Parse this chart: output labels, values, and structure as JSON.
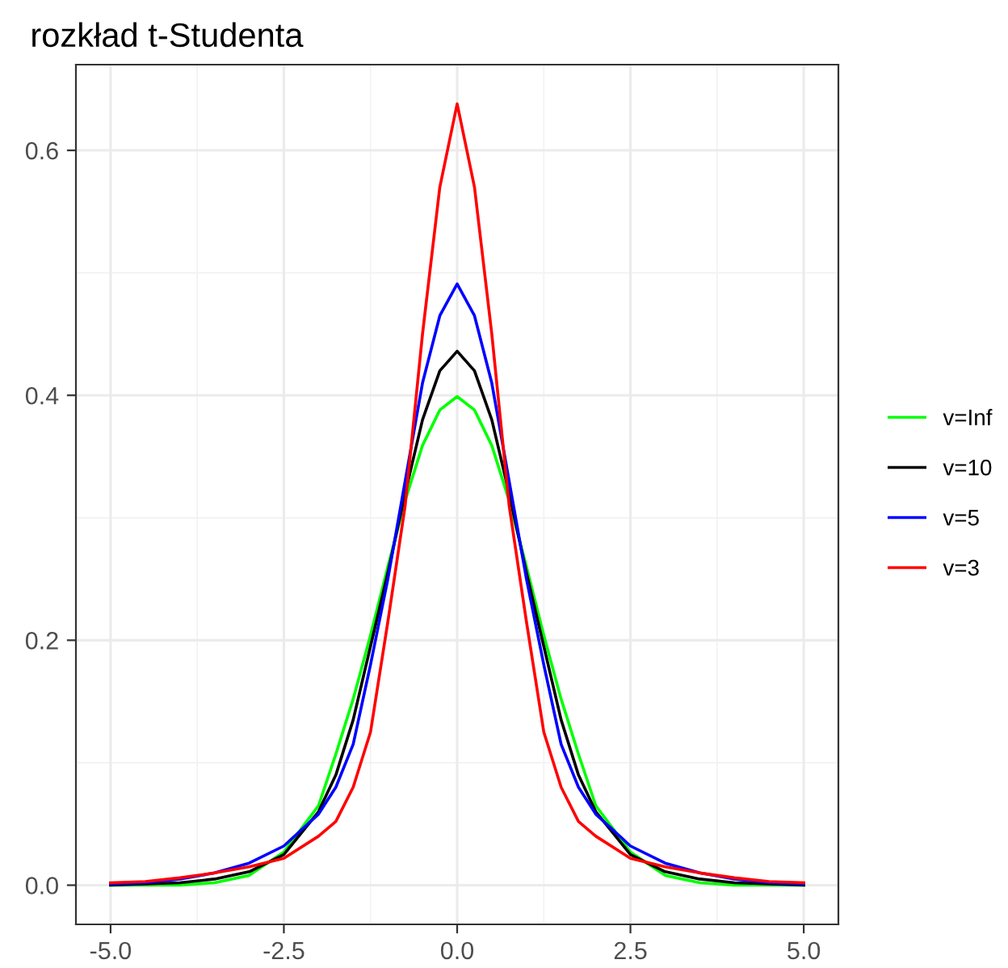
{
  "chart_data": {
    "type": "line",
    "title": "rozkład t-Studenta",
    "x": [
      -5,
      -4.5,
      -4,
      -3.5,
      -3,
      -2.5,
      -2,
      -1.75,
      -1.5,
      -1.25,
      -1,
      -0.75,
      -0.5,
      -0.25,
      0,
      0.25,
      0.5,
      0.75,
      1,
      1.25,
      1.5,
      1.75,
      2,
      2.5,
      3,
      3.5,
      4,
      4.5,
      5
    ],
    "series": [
      {
        "name": "v=Inf",
        "color": "#00ff00",
        "values": [
          0,
          0,
          0,
          0.002,
          0.008,
          0.027,
          0.065,
          0.107,
          0.152,
          0.204,
          0.26,
          0.314,
          0.359,
          0.388,
          0.399,
          0.388,
          0.359,
          0.314,
          0.26,
          0.204,
          0.152,
          0.107,
          0.065,
          0.027,
          0.008,
          0.002,
          0,
          0,
          0
        ]
      },
      {
        "name": "v=10",
        "color": "#000000",
        "values": [
          0,
          0.001,
          0.002,
          0.005,
          0.011,
          0.025,
          0.06,
          0.09,
          0.135,
          0.195,
          0.255,
          0.32,
          0.38,
          0.42,
          0.436,
          0.42,
          0.38,
          0.32,
          0.255,
          0.195,
          0.135,
          0.09,
          0.06,
          0.025,
          0.011,
          0.005,
          0.002,
          0.001,
          0
        ]
      },
      {
        "name": "v=5",
        "color": "#0000ff",
        "values": [
          0.001,
          0.002,
          0.005,
          0.01,
          0.018,
          0.032,
          0.058,
          0.08,
          0.115,
          0.18,
          0.25,
          0.33,
          0.41,
          0.465,
          0.491,
          0.465,
          0.41,
          0.33,
          0.25,
          0.18,
          0.115,
          0.08,
          0.058,
          0.032,
          0.018,
          0.01,
          0.005,
          0.002,
          0.001
        ]
      },
      {
        "name": "v=3",
        "color": "#ff0000",
        "values": [
          0.002,
          0.003,
          0.006,
          0.01,
          0.015,
          0.022,
          0.04,
          0.052,
          0.08,
          0.125,
          0.215,
          0.31,
          0.45,
          0.57,
          0.638,
          0.57,
          0.45,
          0.31,
          0.215,
          0.125,
          0.08,
          0.052,
          0.04,
          0.022,
          0.015,
          0.01,
          0.006,
          0.003,
          0.002
        ]
      }
    ],
    "xlim": [
      -5.5,
      5.5
    ],
    "ylim": [
      -0.032,
      0.67
    ],
    "xticks": [
      {
        "value": -5,
        "label": "-5.0"
      },
      {
        "value": -2.5,
        "label": "-2.5"
      },
      {
        "value": 0,
        "label": "0.0"
      },
      {
        "value": 2.5,
        "label": "2.5"
      },
      {
        "value": 5,
        "label": "5.0"
      }
    ],
    "yticks": [
      {
        "value": 0,
        "label": "0.0"
      },
      {
        "value": 0.2,
        "label": "0.2"
      },
      {
        "value": 0.4,
        "label": "0.4"
      },
      {
        "value": 0.6,
        "label": "0.6"
      }
    ],
    "grid": true,
    "legend": "right",
    "line_style": "solid",
    "marker": "none"
  }
}
